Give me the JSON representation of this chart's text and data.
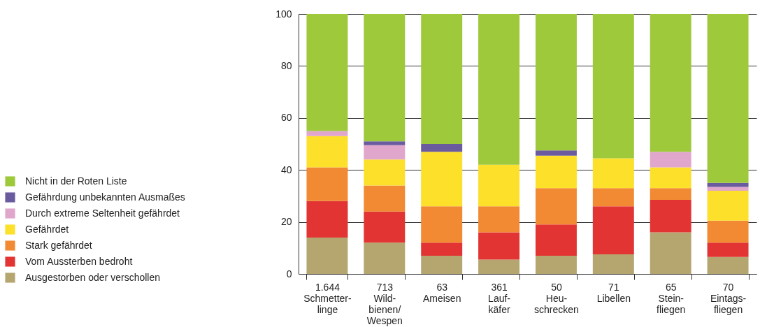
{
  "chart_data": {
    "type": "bar",
    "stacked": true,
    "categories": [
      "1.644\nSchmetter-\nlinge",
      "713\nWild-\nbienen/\nWespen",
      "63\nAmeisen",
      "361\nLauf-\nkäfer",
      "50\nHeu-\nschrecken",
      "71\nLibellen",
      "65\nStein-\nfliegen",
      "70\nEintags-\nfliegen"
    ],
    "series": [
      {
        "name": "Ausgestorben oder verschollen",
        "color": "#b5a66f",
        "values": [
          14,
          12,
          7,
          5.5,
          7,
          7.5,
          16,
          6.5
        ]
      },
      {
        "name": "Vom Aussterben bedroht",
        "color": "#e33434",
        "values": [
          14,
          12,
          5,
          10.5,
          12,
          18.5,
          12.5,
          5.5
        ]
      },
      {
        "name": "Stark gefährdet",
        "color": "#f18a33",
        "values": [
          13,
          10,
          14,
          10,
          14,
          7,
          4.5,
          8.5
        ]
      },
      {
        "name": "Gefährdet",
        "color": "#fce02a",
        "values": [
          12,
          10,
          21,
          16,
          12.5,
          11.5,
          8,
          11.5
        ]
      },
      {
        "name": "Durch extreme Seltenheit gefährdet",
        "color": "#e0a6cc",
        "values": [
          2,
          5.5,
          0,
          0,
          0,
          0,
          6,
          1.5
        ]
      },
      {
        "name": "Gefährdung unbekannten Ausmaßes",
        "color": "#6a5a9e",
        "values": [
          0,
          1.5,
          3,
          0,
          2,
          0,
          0,
          1.5
        ]
      },
      {
        "name": "Nicht in der Roten Liste",
        "color": "#9dc93b",
        "values": [
          45,
          49,
          50,
          58,
          52.5,
          55.5,
          53,
          65
        ]
      }
    ],
    "ylim": [
      0,
      100
    ],
    "yticks": [
      0,
      20,
      40,
      60,
      80,
      100
    ],
    "grid": "y",
    "legend": "left"
  }
}
